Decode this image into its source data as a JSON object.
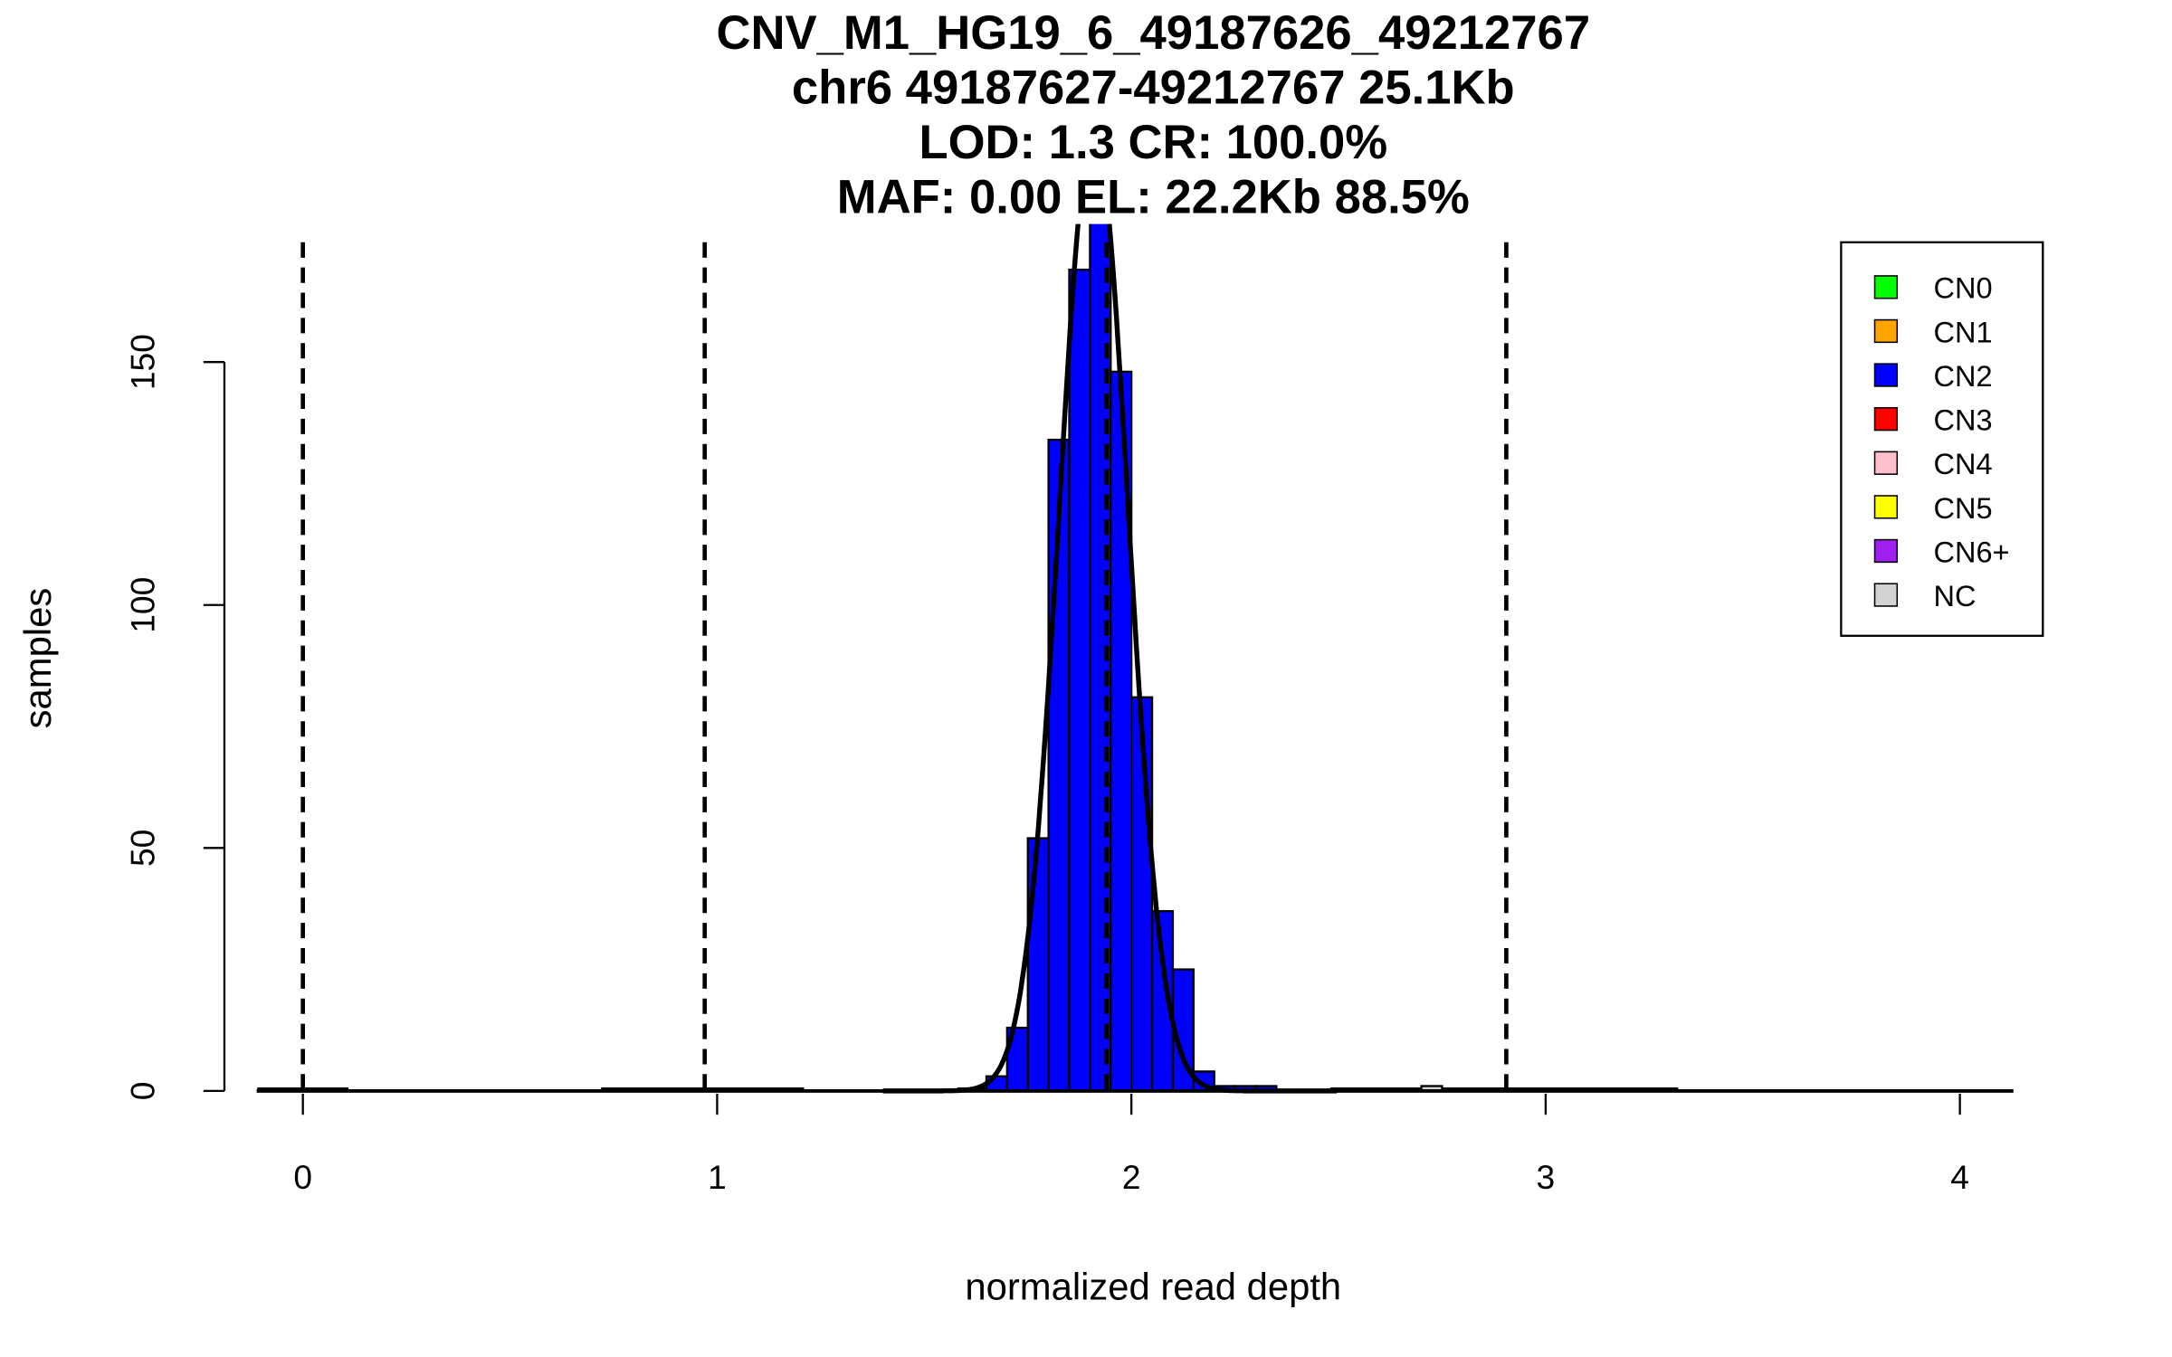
{
  "chart_data": {
    "type": "bar",
    "title_lines": [
      "CNV_M1_HG19_6_49187626_49212767",
      "chr6 49187627-49212767 25.1Kb",
      "LOD: 1.3 CR: 100.0%",
      "MAF: 0.00 EL: 22.2Kb 88.5%"
    ],
    "xlabel": "normalized read depth",
    "ylabel": "samples",
    "xlim": [
      -0.11,
      4.12
    ],
    "ylim": [
      0,
      178
    ],
    "x_ticks": [
      0,
      1,
      2,
      3,
      4
    ],
    "x_tick_labels": [
      "0",
      "1",
      "2",
      "3",
      "4"
    ],
    "y_ticks": [
      0,
      50,
      100,
      150
    ],
    "y_tick_labels": [
      "0",
      "50",
      "100",
      "150"
    ],
    "bin_width": 0.05,
    "histogram": {
      "bin_start": 1.65,
      "counts": [
        3,
        13,
        52,
        134,
        169,
        180,
        148,
        81,
        37,
        25,
        4,
        1,
        1,
        1
      ],
      "color": "#0000FF"
    },
    "extra_bins": [
      {
        "start": 2.7,
        "count": 1
      }
    ],
    "zero_count_ranges": [
      [
        -0.11,
        0.11
      ],
      [
        0.72,
        1.21
      ],
      [
        1.58,
        1.65
      ],
      [
        2.48,
        3.32
      ]
    ],
    "normal_fit": {
      "mean": 1.909,
      "sd": 0.083,
      "peak": 198
    },
    "threshold_lines": [
      0,
      0.97,
      1.94,
      2.905
    ],
    "legend": {
      "position": "top-right",
      "entries": [
        {
          "label": "CN0",
          "color": "#00FF00"
        },
        {
          "label": "CN1",
          "color": "#FFA500"
        },
        {
          "label": "CN2",
          "color": "#0000FF"
        },
        {
          "label": "CN3",
          "color": "#FF0000"
        },
        {
          "label": "CN4",
          "color": "#FFC0CB"
        },
        {
          "label": "CN5",
          "color": "#FFFF00"
        },
        {
          "label": "CN6+",
          "color": "#A020F0"
        },
        {
          "label": "NC",
          "color": "#D3D3D3"
        }
      ]
    }
  }
}
